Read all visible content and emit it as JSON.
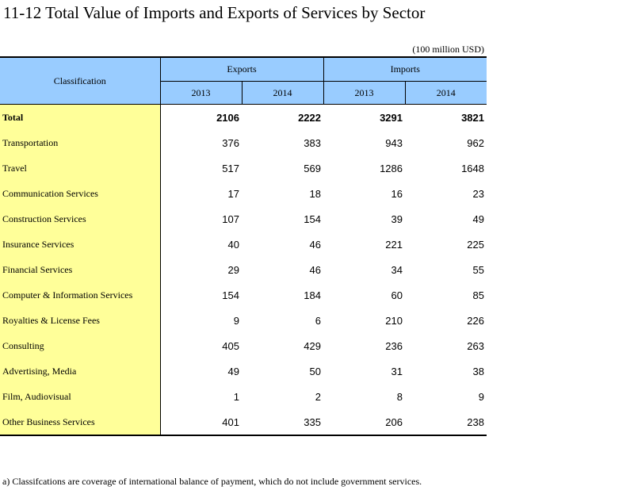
{
  "title": "11-12  Total Value of Imports and Exports of Services by Sector",
  "unit": "(100 million USD)",
  "header": {
    "classification": "Classification",
    "groups": [
      "Exports",
      "Imports"
    ],
    "years": [
      "2013",
      "2014",
      "2013",
      "2014"
    ]
  },
  "rows": [
    {
      "label": "Total",
      "values": [
        "2106",
        "2222",
        "3291",
        "3821"
      ]
    },
    {
      "label": "Transportation",
      "values": [
        "376",
        "383",
        "943",
        "962"
      ]
    },
    {
      "label": "Travel",
      "values": [
        "517",
        "569",
        "1286",
        "1648"
      ]
    },
    {
      "label": "Communication Services",
      "values": [
        "17",
        "18",
        "16",
        "23"
      ]
    },
    {
      "label": "Construction Services",
      "values": [
        "107",
        "154",
        "39",
        "49"
      ]
    },
    {
      "label": "Insurance Services",
      "values": [
        "40",
        "46",
        "221",
        "225"
      ]
    },
    {
      "label": "Financial Services",
      "values": [
        "29",
        "46",
        "34",
        "55"
      ]
    },
    {
      "label": "Computer & Information Services",
      "values": [
        "154",
        "184",
        "60",
        "85"
      ]
    },
    {
      "label": "Royalties & License Fees",
      "values": [
        "9",
        "6",
        "210",
        "226"
      ]
    },
    {
      "label": "Consulting",
      "values": [
        "405",
        "429",
        "236",
        "263"
      ]
    },
    {
      "label": "Advertising, Media",
      "values": [
        "49",
        "50",
        "31",
        "38"
      ]
    },
    {
      "label": "Film, Audiovisual",
      "values": [
        "1",
        "2",
        "8",
        "9"
      ]
    },
    {
      "label": "Other Business Services",
      "values": [
        "401",
        "335",
        "206",
        "238"
      ]
    }
  ],
  "footnote": "a) Classifcations are coverage of international balance of payment, which do not include government services."
}
